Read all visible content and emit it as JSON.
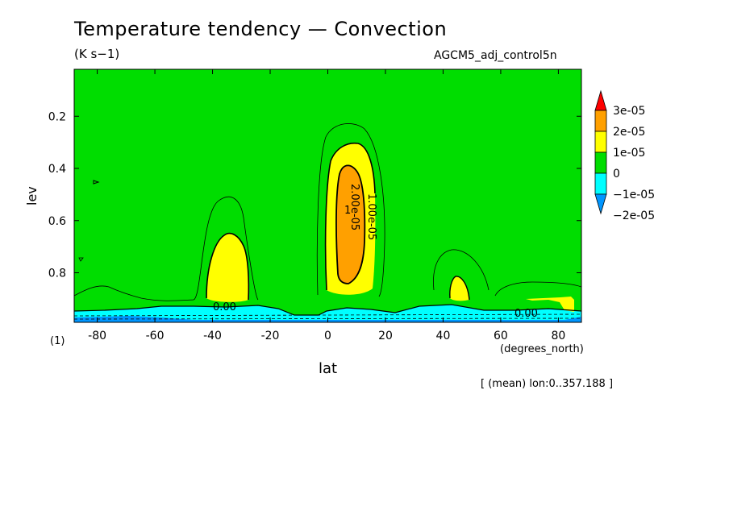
{
  "chart_data": {
    "type": "contour",
    "title": "Temperature tendency — Convection",
    "units": "(K s−1)",
    "dataset": "AGCM5_adj_control5n",
    "xlabel": "lat",
    "xunits": "(degrees_north)",
    "ylabel": "lev",
    "panel_label": "(1)",
    "footer": "[ (mean) lon:0..357.188 ]",
    "xlim": [
      -88,
      88
    ],
    "ylim": [
      0.99,
      0.02
    ],
    "x_ticks": [
      "-80",
      "-60",
      "-40",
      "-20",
      "0",
      "20",
      "40",
      "60",
      "80"
    ],
    "x_tick_values": [
      -80,
      -60,
      -40,
      -20,
      0,
      20,
      40,
      60,
      80
    ],
    "y_ticks": [
      "0.2",
      "0.4",
      "0.6",
      "0.8"
    ],
    "y_tick_values": [
      0.2,
      0.4,
      0.6,
      0.8
    ],
    "colorbar": {
      "levels": [
        "3e-05",
        "2e-05",
        "1e-05",
        "0",
        "−1e-05",
        "−2e-05"
      ],
      "colors": [
        "#ff0000",
        "#ffa000",
        "#ffff00",
        "#00dd00",
        "#00ffff",
        "#0096ff"
      ],
      "bands": [
        {
          "range": "> 3e-05",
          "color": "#ff0000"
        },
        {
          "range": "2e-05 to 3e-05",
          "color": "#ffa000"
        },
        {
          "range": "1e-05 to 2e-05",
          "color": "#ffff00"
        },
        {
          "range": "0 to 1e-05",
          "color": "#00dd00"
        },
        {
          "range": "-1e-05 to 0",
          "color": "#00ffff"
        },
        {
          "range": "-2e-05 to -1e-05",
          "color": "#0096ff"
        }
      ]
    },
    "contour_labels": [
      "1.00e-05",
      "2.00e-05",
      "1",
      "0.00",
      "0.00"
    ],
    "features": [
      {
        "name": "tropical-maximum",
        "lat": 7,
        "lev_top": 0.24,
        "peak_band": "2e-05 to 3e-05"
      },
      {
        "name": "southern-midlat-maximum",
        "lat": -33,
        "lev_top": 0.5,
        "peak_band": "1e-05 to 2e-05"
      },
      {
        "name": "northern-midlat-maximum",
        "lat": 45,
        "lev_top": 0.8,
        "peak_band": "1e-05 to 2e-05"
      },
      {
        "name": "near-surface-cooling",
        "lev_range": [
          0.93,
          0.99
        ],
        "band": "-1e-05 to 0"
      }
    ]
  }
}
